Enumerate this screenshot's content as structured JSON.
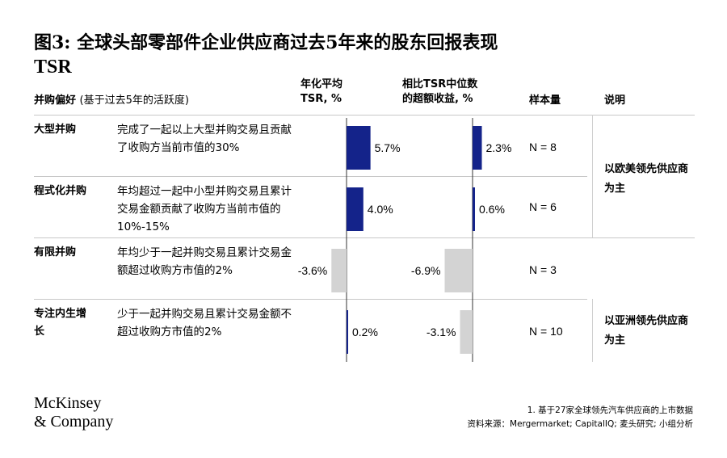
{
  "title": {
    "main": "图3: 全球头部零部件企业供应商过去5年来的股东回报表现",
    "tail": "TSR"
  },
  "headers": {
    "preference": "并购偏好",
    "preference_sub": "(基于过去5年的活跃度)",
    "tsr_line1": "年化平均",
    "tsr_line2": "TSR, %",
    "excess_line1": "相比TSR中位数",
    "excess_line2": "的超额收益, %",
    "sample": "样本量",
    "notes": "说明"
  },
  "rows": [
    {
      "category": "大型并购",
      "description": "完成了一起以上大型并购交易且贡献了收购方当前市值的30%",
      "tsr_label": "5.7%",
      "excess_label": "2.3%",
      "sample": "N = 8"
    },
    {
      "category": "程式化并购",
      "description": "年均超过一起中小型并购交易且累计交易金额贡献了收购方当前市值的10%-15%",
      "tsr_label": "4.0%",
      "excess_label": "0.6%",
      "sample": "N = 6"
    },
    {
      "category": "有限并购",
      "description": "年均少于一起并购交易且累计交易金额超过收购方市值的2%",
      "tsr_label": "-3.6%",
      "excess_label": "-6.9%",
      "sample": "N = 3"
    },
    {
      "category": "专注内生增长",
      "description": "少于一起并购交易且累计交易金额不超过收购方市值的2%",
      "tsr_label": "0.2%",
      "excess_label": "-3.1%",
      "sample": "N = 10"
    }
  ],
  "notes": {
    "group1": "以欧美领先供应商为主",
    "group2": "以亚洲领先供应商为主"
  },
  "footnotes": {
    "line1": "1.  基于27家全球领先汽车供应商的上市数据",
    "line2": "资料来源：Mergermarket; CapitalIQ; 麦头研究; 小组分析"
  },
  "logo": {
    "line1": "McKinsey",
    "line2": "& Company"
  },
  "colors": {
    "positive": "#14238a",
    "negative": "#d3d3d3"
  },
  "chart_data": [
    {
      "type": "bar",
      "orientation": "vertical",
      "title": "年化平均 TSR, %",
      "categories": [
        "大型并购",
        "程式化并购",
        "有限并购",
        "专注内生增长"
      ],
      "values": [
        5.7,
        4.0,
        -3.6,
        0.2
      ],
      "unit": "%"
    },
    {
      "type": "bar",
      "orientation": "vertical",
      "title": "相比TSR中位数的超额收益, %",
      "categories": [
        "大型并购",
        "程式化并购",
        "有限并购",
        "专注内生增长"
      ],
      "values": [
        2.3,
        0.6,
        -6.9,
        -3.1
      ],
      "unit": "%"
    }
  ]
}
